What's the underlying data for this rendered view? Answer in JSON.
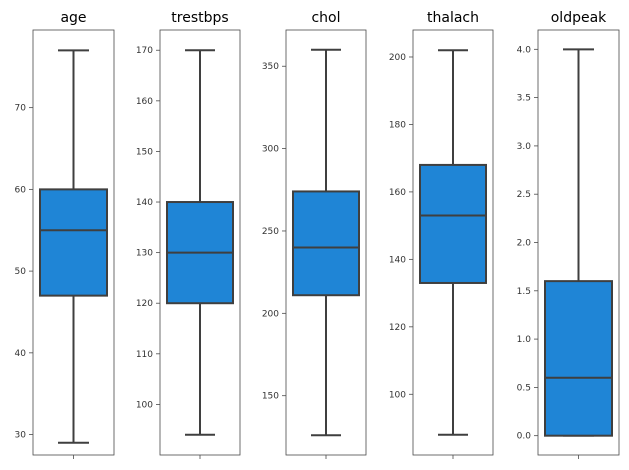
{
  "chart_data": [
    {
      "type": "box",
      "title": "age",
      "stats": {
        "whislo": 29,
        "q1": 47,
        "med": 55,
        "q3": 60,
        "whishi": 77
      },
      "ylim": [
        27.5,
        79.5
      ],
      "yticks": [
        30,
        40,
        50,
        60,
        70
      ],
      "ytick_labels": [
        "30",
        "40",
        "50",
        "60",
        "70"
      ]
    },
    {
      "type": "box",
      "title": "trestbps",
      "stats": {
        "whislo": 94,
        "q1": 120,
        "med": 130,
        "q3": 140,
        "whishi": 170
      },
      "ylim": [
        90,
        174
      ],
      "yticks": [
        100,
        110,
        120,
        130,
        140,
        150,
        160,
        170
      ],
      "ytick_labels": [
        "100",
        "110",
        "120",
        "130",
        "140",
        "150",
        "160",
        "170"
      ]
    },
    {
      "type": "box",
      "title": "chol",
      "stats": {
        "whislo": 126,
        "q1": 211,
        "med": 240,
        "q3": 274,
        "whishi": 360
      },
      "ylim": [
        114,
        372
      ],
      "yticks": [
        150,
        200,
        250,
        300,
        350
      ],
      "ytick_labels": [
        "150",
        "200",
        "250",
        "300",
        "350"
      ]
    },
    {
      "type": "box",
      "title": "thalach",
      "stats": {
        "whislo": 88,
        "q1": 133,
        "med": 153,
        "q3": 168,
        "whishi": 202
      },
      "ylim": [
        82,
        208
      ],
      "yticks": [
        100,
        120,
        140,
        160,
        180,
        200
      ],
      "ytick_labels": [
        "100",
        "120",
        "140",
        "160",
        "180",
        "200"
      ]
    },
    {
      "type": "box",
      "title": "oldpeak",
      "stats": {
        "whislo": 0.0,
        "q1": 0.0,
        "med": 0.6,
        "q3": 1.6,
        "whishi": 4.0
      },
      "ylim": [
        -0.2,
        4.2
      ],
      "yticks": [
        0.0,
        0.5,
        1.0,
        1.5,
        2.0,
        2.5,
        3.0,
        3.5,
        4.0
      ],
      "ytick_labels": [
        "0.0",
        "0.5",
        "1.0",
        "1.5",
        "2.0",
        "2.5",
        "3.0",
        "3.5",
        "4.0"
      ]
    }
  ],
  "style": {
    "box_fill": "#1f85d6",
    "line_color": "#3f3f3f",
    "frame_color": "#4a4a4a",
    "background": "#ffffff"
  }
}
